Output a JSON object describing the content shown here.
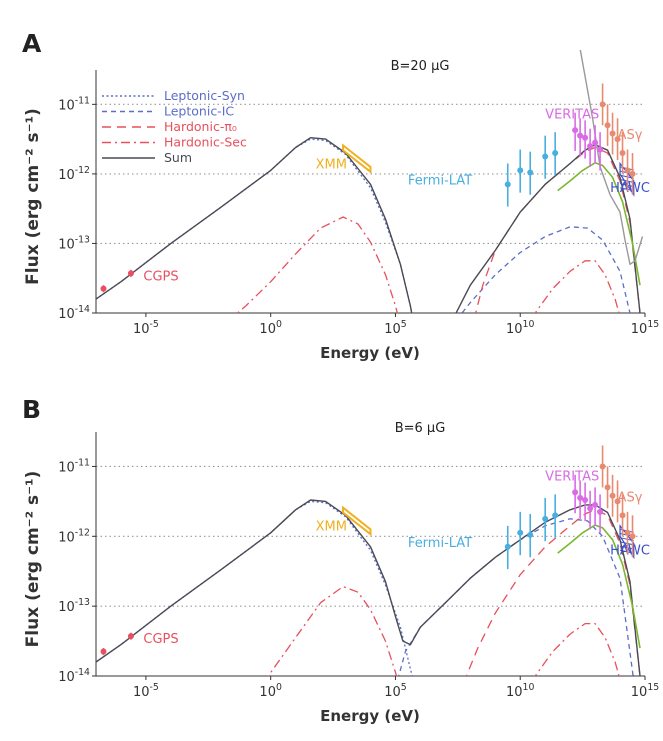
{
  "colors": {
    "syn": "#5b6ec8",
    "ic": "#5b6ec8",
    "pi0": "#e8505b",
    "sec": "#e8505b",
    "sum": "#4a4a55",
    "xmm": "#f0b020",
    "cgps": "#e85060",
    "fermi": "#4aaee0",
    "veritas": "#d96be6",
    "asg": "#e88a70",
    "hawc": "#3a4fcc",
    "green": "#7ab830",
    "gray": "#999999",
    "grid": "#9a9a9a",
    "axis": "#333333"
  },
  "chart_data": [
    {
      "type": "line",
      "panel_label": "A",
      "title": "B=20 μG",
      "xlabel": "Energy (eV)",
      "ylabel": "Flux (erg cm⁻² s⁻¹)",
      "xscale": "log",
      "yscale": "log",
      "xlim_log10": [
        -7,
        15
      ],
      "ylim_log10": [
        -14,
        -10.65
      ],
      "xticks": [
        "10⁻⁵",
        "10⁰",
        "10⁵",
        "10¹⁰",
        "10¹⁵"
      ],
      "yticks": [
        "10⁻¹¹",
        "10⁻¹²",
        "10⁻¹³",
        "10⁻¹⁴"
      ],
      "legend_position": "top-left",
      "legend": [
        "Leptonic-Syn",
        "Leptonic-IC",
        "Hardonic-π₀",
        "Hardonic-Sec",
        "Sum"
      ],
      "labels": {
        "xmm": "XMM",
        "cgps": "CGPS",
        "fermi": "Fermi-LAT",
        "veritas": "VERITAS",
        "asg": "ASγ",
        "hawc": "HAWC"
      },
      "series": [
        {
          "name": "Leptonic-Syn",
          "style": "dotted",
          "x": [
            -7,
            -6,
            -4,
            -2,
            0,
            1,
            1.6,
            2.2,
            3,
            4,
            4.6,
            5.2,
            5.6,
            5.8
          ],
          "y": [
            -13.8,
            -13.55,
            -13.0,
            -12.48,
            -11.95,
            -11.62,
            -11.5,
            -11.52,
            -11.72,
            -12.2,
            -12.7,
            -13.3,
            -13.9,
            -14.3
          ]
        },
        {
          "name": "Leptonic-IC",
          "style": "dashed",
          "x": [
            7,
            8,
            9,
            10,
            11,
            12,
            12.7,
            13.3,
            14,
            14.6
          ],
          "y": [
            -14.3,
            -13.85,
            -13.45,
            -13.13,
            -12.9,
            -12.76,
            -12.78,
            -12.95,
            -13.4,
            -14.3
          ]
        },
        {
          "name": "Hardonic-π₀",
          "style": "longdash",
          "x": [
            8,
            8.5,
            9,
            10,
            11,
            12,
            12.6,
            13,
            13.5,
            14,
            14.4,
            14.8
          ],
          "y": [
            -14.3,
            -13.6,
            -13.1,
            -12.55,
            -12.15,
            -11.85,
            -11.68,
            -11.62,
            -11.7,
            -12.1,
            -12.7,
            -14.0
          ]
        },
        {
          "name": "Hardonic-Sec",
          "style": "dashdot",
          "x": [
            -2.3,
            -1,
            0,
            1,
            2,
            2.9,
            3.5,
            4,
            4.6,
            5,
            5.3
          ],
          "y": [
            -14.3,
            -13.9,
            -13.55,
            -13.15,
            -12.78,
            -12.62,
            -12.72,
            -12.98,
            -13.45,
            -13.9,
            -14.3
          ]
        },
        {
          "name": "Hardonic-Sec (TeV)",
          "style": "dashdot",
          "x": [
            10,
            10.6,
            11.3,
            12,
            12.6,
            13,
            13.4,
            13.8,
            14.2
          ],
          "y": [
            -14.3,
            -14.0,
            -13.65,
            -13.4,
            -13.25,
            -13.25,
            -13.45,
            -13.8,
            -14.3
          ]
        },
        {
          "name": "Sum",
          "style": "solid",
          "x": [
            -7,
            -6,
            -4,
            -2,
            0,
            1,
            1.6,
            2.2,
            3,
            4,
            4.6,
            5.2,
            5.6,
            5.8
          ],
          "y": [
            -13.8,
            -13.55,
            -13.0,
            -12.48,
            -11.95,
            -11.62,
            -11.48,
            -11.5,
            -11.7,
            -12.15,
            -12.65,
            -13.3,
            -13.9,
            -14.3
          ]
        },
        {
          "name": "Sum (high-energy)",
          "style": "solid",
          "x": [
            7,
            8,
            9,
            10,
            11,
            12,
            12.6,
            13,
            13.5,
            14,
            14.4,
            14.8
          ],
          "y": [
            -14.3,
            -13.6,
            -13.1,
            -12.55,
            -12.15,
            -11.85,
            -11.66,
            -11.58,
            -11.66,
            -12.05,
            -12.65,
            -14.0
          ]
        },
        {
          "name": "green model",
          "style": "solid",
          "x": [
            11.5,
            12,
            12.5,
            13,
            13.3,
            13.7,
            14.1,
            14.5,
            14.8
          ],
          "y": [
            -12.24,
            -12.1,
            -11.95,
            -11.84,
            -11.88,
            -12.05,
            -12.4,
            -13.0,
            -13.6
          ]
        },
        {
          "name": "gray sensitivity",
          "style": "solid",
          "x": [
            12.3,
            12.6,
            12.9,
            13.2,
            13.6,
            14.0,
            14.2,
            14.4,
            14.6,
            14.9
          ],
          "y": [
            -10.0,
            -10.6,
            -11.2,
            -11.9,
            -12.3,
            -12.55,
            -12.95,
            -13.3,
            -13.25,
            -12.9
          ]
        }
      ],
      "points": {
        "cgps": {
          "x": [
            -6.7,
            -5.6
          ],
          "y": [
            -13.65,
            -13.43
          ]
        },
        "fermi": {
          "x": [
            9.5,
            10,
            10.4,
            11,
            11.4
          ],
          "y": [
            -12.15,
            -11.95,
            -11.98,
            -11.75,
            -11.7
          ]
        },
        "veritas": {
          "x": [
            12.2,
            12.4,
            12.6,
            12.8,
            13.0,
            13.2
          ],
          "y": [
            -11.37,
            -11.45,
            -11.48,
            -11.6,
            -11.55,
            -11.65
          ]
        },
        "asg": {
          "x": [
            13.3,
            13.5,
            13.7,
            13.9,
            14.1,
            14.3,
            14.5
          ],
          "y": [
            -11.0,
            -11.3,
            -11.42,
            -11.5,
            -11.7,
            -11.95,
            -12.0
          ]
        }
      }
    },
    {
      "type": "line",
      "panel_label": "B",
      "title": "B=6 μG",
      "xlabel": "Energy (eV)",
      "ylabel": "Flux (erg cm⁻² s⁻¹)",
      "xscale": "log",
      "yscale": "log",
      "xlim_log10": [
        -7,
        15
      ],
      "ylim_log10": [
        -14,
        -10.65
      ],
      "xticks": [
        "10⁻⁵",
        "10⁰",
        "10⁵",
        "10¹⁰",
        "10¹⁵"
      ],
      "yticks": [
        "10⁻¹¹",
        "10⁻¹²",
        "10⁻¹³",
        "10⁻¹⁴"
      ],
      "labels": {
        "xmm": "XMM",
        "cgps": "CGPS",
        "fermi": "Fermi-LAT",
        "veritas": "VERITAS",
        "asg": "ASγ",
        "hawc": "HAWC"
      },
      "series": [
        {
          "name": "Leptonic-Syn",
          "style": "dotted",
          "x": [
            -7,
            -6,
            -4,
            -2,
            0,
            1,
            1.6,
            2.2,
            3,
            4,
            4.6,
            5.2,
            5.6,
            5.9
          ],
          "y": [
            -13.8,
            -13.55,
            -13.0,
            -12.48,
            -11.95,
            -11.62,
            -11.5,
            -11.52,
            -11.72,
            -12.2,
            -12.7,
            -13.3,
            -13.9,
            -14.3
          ]
        },
        {
          "name": "Leptonic-IC",
          "style": "dashed",
          "x": [
            4.9,
            5.4,
            6,
            7,
            8,
            9,
            10,
            11,
            12,
            12.7,
            13.3,
            14,
            14.6
          ],
          "y": [
            -14.3,
            -13.65,
            -13.3,
            -12.95,
            -12.6,
            -12.3,
            -12.05,
            -11.85,
            -11.75,
            -11.78,
            -12.0,
            -12.6,
            -14.2
          ]
        },
        {
          "name": "Hardonic-π₀",
          "style": "longdash",
          "x": [
            7.5,
            8.3,
            9,
            10,
            11,
            12,
            12.6,
            13,
            13.5,
            14,
            14.4,
            14.8
          ],
          "y": [
            -14.3,
            -13.6,
            -13.1,
            -12.55,
            -12.15,
            -11.85,
            -11.68,
            -11.62,
            -11.7,
            -12.1,
            -12.7,
            -14.0
          ]
        },
        {
          "name": "Hardonic-Sec",
          "style": "dashdot",
          "x": [
            -0.8,
            0,
            1,
            2,
            2.9,
            3.5,
            4,
            4.6,
            5,
            5.3
          ],
          "y": [
            -14.3,
            -13.95,
            -13.45,
            -12.95,
            -12.72,
            -12.8,
            -13.05,
            -13.5,
            -13.95,
            -14.3
          ]
        },
        {
          "name": "Hardonic-Sec (TeV)",
          "style": "dashdot",
          "x": [
            10,
            10.6,
            11.3,
            12,
            12.6,
            13,
            13.4,
            13.8,
            14.2
          ],
          "y": [
            -14.3,
            -14.0,
            -13.65,
            -13.4,
            -13.25,
            -13.25,
            -13.45,
            -13.8,
            -14.3
          ]
        },
        {
          "name": "Sum",
          "style": "solid",
          "x": [
            -7,
            -6,
            -4,
            -2,
            0,
            1,
            1.6,
            2.2,
            3,
            4,
            4.6,
            5,
            5.3,
            5.6,
            6,
            7,
            8,
            9,
            10,
            11,
            12,
            12.6,
            13,
            13.5,
            14,
            14.4,
            14.8
          ],
          "y": [
            -13.8,
            -13.55,
            -13.0,
            -12.48,
            -11.95,
            -11.62,
            -11.48,
            -11.5,
            -11.7,
            -12.15,
            -12.65,
            -13.15,
            -13.5,
            -13.55,
            -13.3,
            -12.95,
            -12.6,
            -12.3,
            -12.05,
            -11.8,
            -11.62,
            -11.55,
            -11.55,
            -11.66,
            -12.05,
            -12.65,
            -14.0
          ]
        },
        {
          "name": "green model",
          "style": "solid",
          "x": [
            11.5,
            12,
            12.5,
            13,
            13.3,
            13.7,
            14.1,
            14.5,
            14.8
          ],
          "y": [
            -12.24,
            -12.1,
            -11.95,
            -11.84,
            -11.88,
            -12.05,
            -12.4,
            -13.0,
            -13.6
          ]
        }
      ],
      "points": {
        "cgps": {
          "x": [
            -6.7,
            -5.6
          ],
          "y": [
            -13.65,
            -13.43
          ]
        },
        "fermi": {
          "x": [
            9.5,
            10,
            10.4,
            11,
            11.4
          ],
          "y": [
            -12.15,
            -11.95,
            -11.98,
            -11.75,
            -11.7
          ]
        },
        "veritas": {
          "x": [
            12.2,
            12.4,
            12.6,
            12.8,
            13.0,
            13.2
          ],
          "y": [
            -11.37,
            -11.45,
            -11.48,
            -11.6,
            -11.55,
            -11.65
          ]
        },
        "asg": {
          "x": [
            13.3,
            13.5,
            13.7,
            13.9,
            14.1,
            14.3,
            14.5
          ],
          "y": [
            -11.0,
            -11.3,
            -11.42,
            -11.5,
            -11.7,
            -11.95,
            -12.0
          ]
        }
      }
    }
  ]
}
